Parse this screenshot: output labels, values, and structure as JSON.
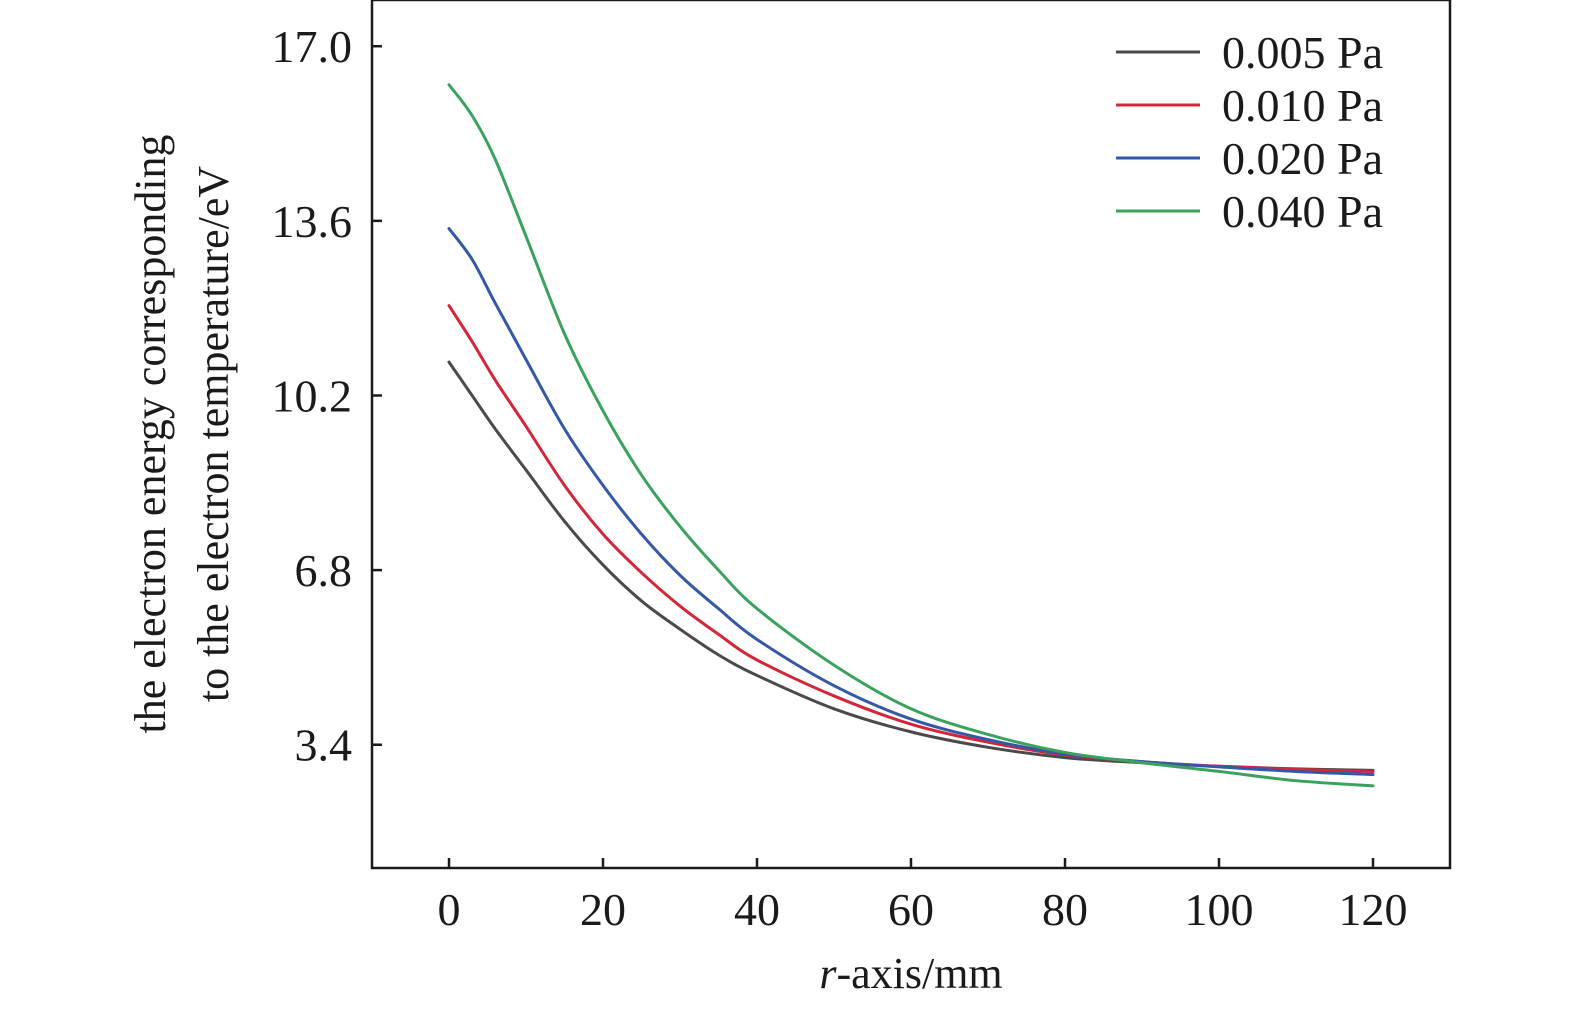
{
  "chart_data": {
    "type": "line",
    "title": "",
    "xlabel_italic": "r",
    "xlabel_rest": "-axis/mm",
    "ylabel_line1": "the electron energy corresponding",
    "ylabel_line2": "to the electron temperature/eV",
    "xlim": [
      -10,
      130
    ],
    "ylim": [
      1.0,
      17.9
    ],
    "xticks": [
      0,
      20,
      40,
      60,
      80,
      100,
      120
    ],
    "xtick_labels": [
      "0",
      "20",
      "40",
      "60",
      "80",
      "100",
      "120"
    ],
    "yticks": [
      3.4,
      6.8,
      10.2,
      13.6,
      17.0
    ],
    "ytick_labels": [
      "3.4",
      "6.8",
      "10.2",
      "13.6",
      "17.0"
    ],
    "grid": false,
    "legend_position": "top-right",
    "series": [
      {
        "name": "0.005 Pa",
        "color": "#4a4a4a",
        "x": [
          0,
          3,
          6,
          10,
          15,
          20,
          25,
          30,
          35,
          40,
          50,
          60,
          70,
          80,
          90,
          100,
          110,
          120
        ],
        "y": [
          10.85,
          10.2,
          9.55,
          8.75,
          7.75,
          6.9,
          6.2,
          5.65,
          5.15,
          4.75,
          4.1,
          3.65,
          3.35,
          3.15,
          3.05,
          2.98,
          2.93,
          2.9
        ]
      },
      {
        "name": "0.010 Pa",
        "color": "#d2263a",
        "x": [
          0,
          3,
          6,
          10,
          15,
          20,
          25,
          30,
          35,
          40,
          50,
          60,
          70,
          80,
          90,
          100,
          110,
          120
        ],
        "y": [
          11.95,
          11.25,
          10.5,
          9.6,
          8.45,
          7.5,
          6.75,
          6.1,
          5.55,
          5.05,
          4.35,
          3.8,
          3.45,
          3.2,
          3.07,
          2.98,
          2.92,
          2.88
        ]
      },
      {
        "name": "0.020 Pa",
        "color": "#3557a8",
        "x": [
          0,
          3,
          6,
          10,
          15,
          20,
          25,
          30,
          35,
          40,
          50,
          60,
          70,
          80,
          90,
          100,
          110,
          120
        ],
        "y": [
          13.45,
          12.85,
          12.0,
          10.9,
          9.55,
          8.45,
          7.5,
          6.7,
          6.05,
          5.45,
          4.55,
          3.9,
          3.5,
          3.22,
          3.07,
          2.97,
          2.88,
          2.82
        ]
      },
      {
        "name": "0.040 Pa",
        "color": "#3aa25c",
        "x": [
          0,
          3,
          6,
          10,
          15,
          20,
          25,
          30,
          35,
          40,
          50,
          60,
          70,
          80,
          90,
          100,
          110,
          120
        ],
        "y": [
          16.25,
          15.65,
          14.8,
          13.3,
          11.4,
          9.9,
          8.65,
          7.65,
          6.8,
          6.05,
          4.95,
          4.1,
          3.6,
          3.25,
          3.05,
          2.88,
          2.7,
          2.6
        ]
      }
    ]
  }
}
